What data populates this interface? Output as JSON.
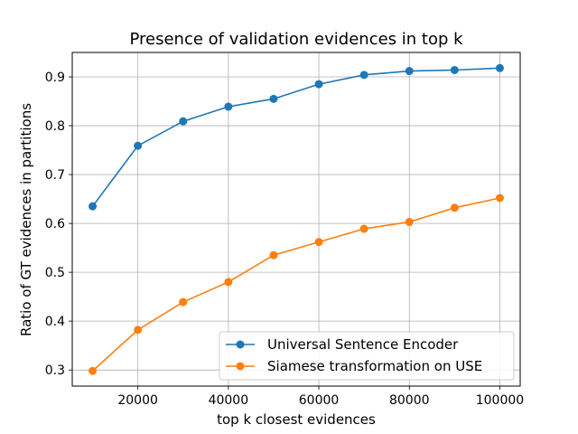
{
  "chart_data": {
    "type": "line",
    "title": "Presence of validation evidences in top k",
    "xlabel": "top k closest evidences",
    "ylabel": "Ratio of GT evidences in partitions",
    "x": [
      10000,
      20000,
      30000,
      40000,
      50000,
      60000,
      70000,
      80000,
      90000,
      100000
    ],
    "xlim": [
      5500,
      104500
    ],
    "ylim": [
      0.267,
      0.95
    ],
    "xticks": [
      20000,
      40000,
      60000,
      80000,
      100000
    ],
    "yticks": [
      0.3,
      0.4,
      0.5,
      0.6,
      0.7,
      0.8,
      0.9
    ],
    "grid": true,
    "legend_position": "lower-right",
    "series": [
      {
        "name": "Universal Sentence Encoder",
        "color": "#1f77b4",
        "marker": "circle",
        "values": [
          0.635,
          0.759,
          0.809,
          0.839,
          0.855,
          0.885,
          0.904,
          0.912,
          0.914,
          0.918
        ]
      },
      {
        "name": "Siamese transformation on USE",
        "color": "#ff7f0e",
        "marker": "circle",
        "values": [
          0.298,
          0.382,
          0.439,
          0.48,
          0.535,
          0.562,
          0.589,
          0.603,
          0.632,
          0.652
        ]
      }
    ]
  }
}
